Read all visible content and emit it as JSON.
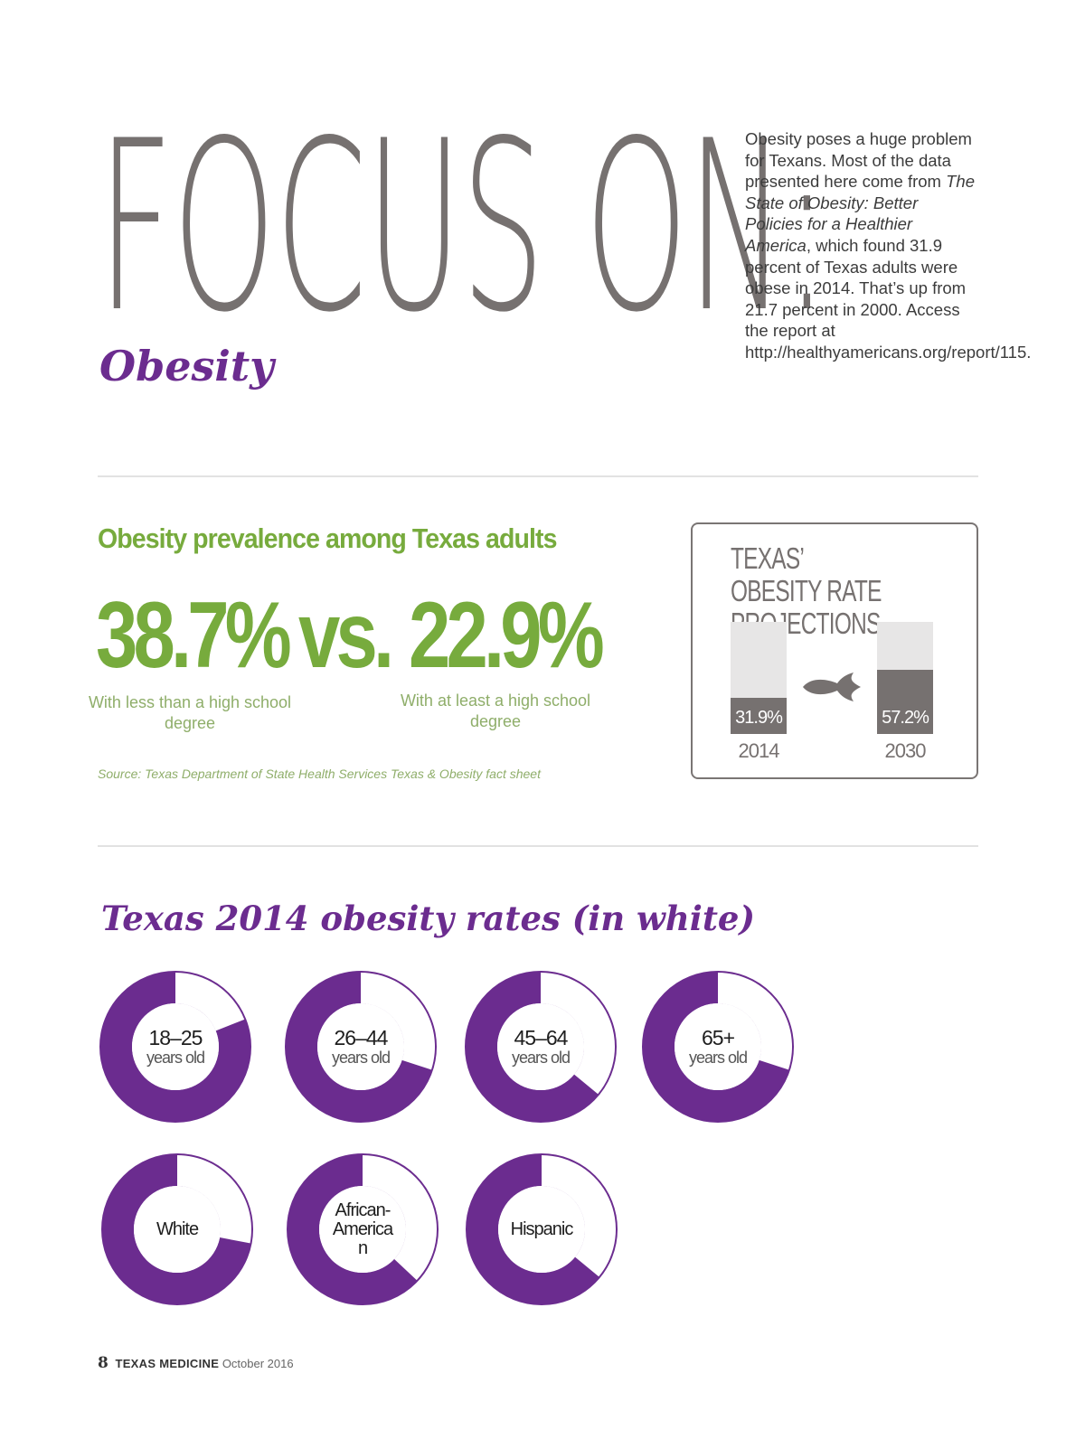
{
  "header": {
    "title": "FOCUS ON:",
    "subtitle": "Obesity"
  },
  "intro": {
    "part1": "Obesity poses a huge problem for Texans. Most of the data presented here come from ",
    "report_title": "The State of Obesity: Better Policies for a Healthier America",
    "part2": ", which found 31.9 percent of Texas adults were obese in 2014. That’s up from 21.7 percent in 2000. Access the report at http://healthyamericans.org/report/115."
  },
  "prevalence": {
    "title": "Obesity prevalence among Texas adults",
    "left_value": "38.7%",
    "vs": "vs.",
    "right_value": "22.9%",
    "left_caption": "With less than a high school degree",
    "right_caption": "With at least a high school degree",
    "source": "Source: Texas Department of State Health Services Texas & Obesity fact sheet"
  },
  "projections": {
    "title": "TEXAS’ OBESITY RATE PROJECTIONS",
    "bars": [
      {
        "year": "2014",
        "label": "31.9%",
        "value": 31.9
      },
      {
        "year": "2030",
        "label": "57.2%",
        "value": 57.2
      }
    ]
  },
  "rates": {
    "title": "Texas 2014 obesity rates (in white)",
    "colors": {
      "ring": "#6b2c8f",
      "rate": "#ffffff"
    },
    "donuts": [
      {
        "line1": "18–25",
        "line2": "years old",
        "rate": 0.19
      },
      {
        "line1": "26–44",
        "line2": "years old",
        "rate": 0.3
      },
      {
        "line1": "45–64",
        "line2": "years old",
        "rate": 0.36
      },
      {
        "line1": "65+",
        "line2": "years old",
        "rate": 0.3
      },
      {
        "line1": "White",
        "line2": "",
        "rate": 0.28
      },
      {
        "line1": "African-American",
        "line2": "",
        "rate": 0.37
      },
      {
        "line1": "Hispanic",
        "line2": "",
        "rate": 0.36
      }
    ]
  },
  "footer": {
    "page": "8",
    "magazine": "TEXAS MEDICINE",
    "date": "October 2016"
  }
}
